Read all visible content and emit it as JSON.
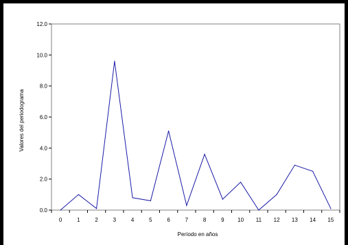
{
  "chart_data": {
    "type": "line",
    "title": "",
    "xlabel": "Período en años",
    "ylabel": "Valores del periodograma",
    "x": [
      0,
      1,
      2,
      3,
      4,
      5,
      6,
      7,
      8,
      9,
      10,
      11,
      12,
      13,
      14,
      15
    ],
    "series": [
      {
        "values": [
          0.0,
          1.0,
          0.1,
          9.6,
          0.8,
          0.6,
          5.1,
          0.3,
          3.6,
          0.7,
          1.8,
          0.0,
          1.0,
          2.9,
          2.5,
          0.1
        ]
      }
    ],
    "ylim": [
      0,
      12
    ],
    "y_ticks": [
      "0.0",
      "2.0",
      "4.0",
      "6.0",
      "8.0",
      "10.0",
      "12.0"
    ],
    "x_ticks": [
      "0",
      "1",
      "2",
      "3",
      "4",
      "5",
      "6",
      "7",
      "8",
      "9",
      "10",
      "11",
      "12",
      "13",
      "14",
      "15"
    ],
    "grid": false,
    "legend": "none",
    "colors": {
      "line": "#1a1aa6",
      "axis": "#808080",
      "background": "#ffffff",
      "border": "#000000"
    }
  }
}
